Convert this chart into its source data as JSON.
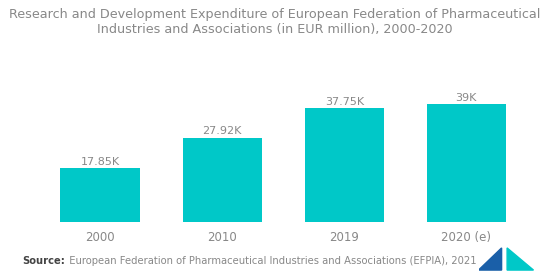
{
  "title": "Research and Development Expenditure of European Federation of Pharmaceutical\nIndustries and Associations (in EUR million), 2000-2020",
  "categories": [
    "2000",
    "2010",
    "2019",
    "2020 (e)"
  ],
  "values": [
    17.85,
    27.92,
    37.75,
    39.0
  ],
  "labels": [
    "17.85K",
    "27.92K",
    "37.75K",
    "39K"
  ],
  "bar_color": "#00C8C8",
  "background_color": "#ffffff",
  "source_bold": "Source:",
  "source_text": "  European Federation of Pharmaceutical Industries and Associations (EFPIA), 2021",
  "title_fontsize": 9.2,
  "label_fontsize": 8.0,
  "source_fontsize": 7.2,
  "bar_width": 0.65,
  "ylim": [
    0,
    46
  ],
  "tick_fontsize": 8.5
}
